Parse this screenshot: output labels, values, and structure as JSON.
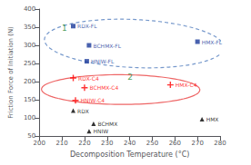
{
  "chart_data": {
    "type": "scatter",
    "title": "",
    "xlabel": "Decomposition Temperature (°C)",
    "ylabel": "Friction Force of Initiation (N)",
    "xlim": [
      200,
      280
    ],
    "ylim": [
      50,
      400
    ],
    "xticks": [
      200,
      210,
      220,
      230,
      240,
      250,
      260,
      270,
      280
    ],
    "yticks": [
      50,
      100,
      150,
      200,
      250,
      300,
      350,
      400
    ],
    "grid": false,
    "series": [
      {
        "marker": "square",
        "color": "#1a3a9a",
        "x": [
          215,
          222,
          221,
          270
        ],
        "values": [
          353,
          300,
          256,
          310
        ],
        "labels": [
          "RDX-FL",
          "BCHMX-FL",
          "HNIW-FL",
          "HMX-FL"
        ]
      },
      {
        "marker": "plus",
        "color": "red",
        "x": [
          215,
          220,
          216,
          258
        ],
        "values": [
          210,
          183,
          148,
          191
        ],
        "labels": [
          "RDX-C4",
          "BCHMX-C4",
          "HNIW-C4",
          "HMX-C4"
        ]
      },
      {
        "marker": "triangle",
        "color": "black",
        "x": [
          215,
          224,
          222,
          272
        ],
        "values": [
          120,
          84,
          63,
          96
        ],
        "labels": [
          "RDX",
          "BCHMX",
          "HNIW",
          "HMX"
        ]
      }
    ],
    "ellipses": [
      {
        "cx": 242,
        "cy": 305,
        "width": 78,
        "height": 135,
        "angle": 8,
        "color": "#7799cc",
        "line_style": "dashed",
        "label": "1",
        "label_x": 210,
        "label_y": 348,
        "label_color": "#228833"
      },
      {
        "cx": 236,
        "cy": 178,
        "width": 70,
        "height": 82,
        "angle": 4,
        "color": "#ee6666",
        "line_style": "solid",
        "label": "2",
        "label_x": 239,
        "label_y": 213,
        "label_color": "#228833"
      }
    ]
  }
}
